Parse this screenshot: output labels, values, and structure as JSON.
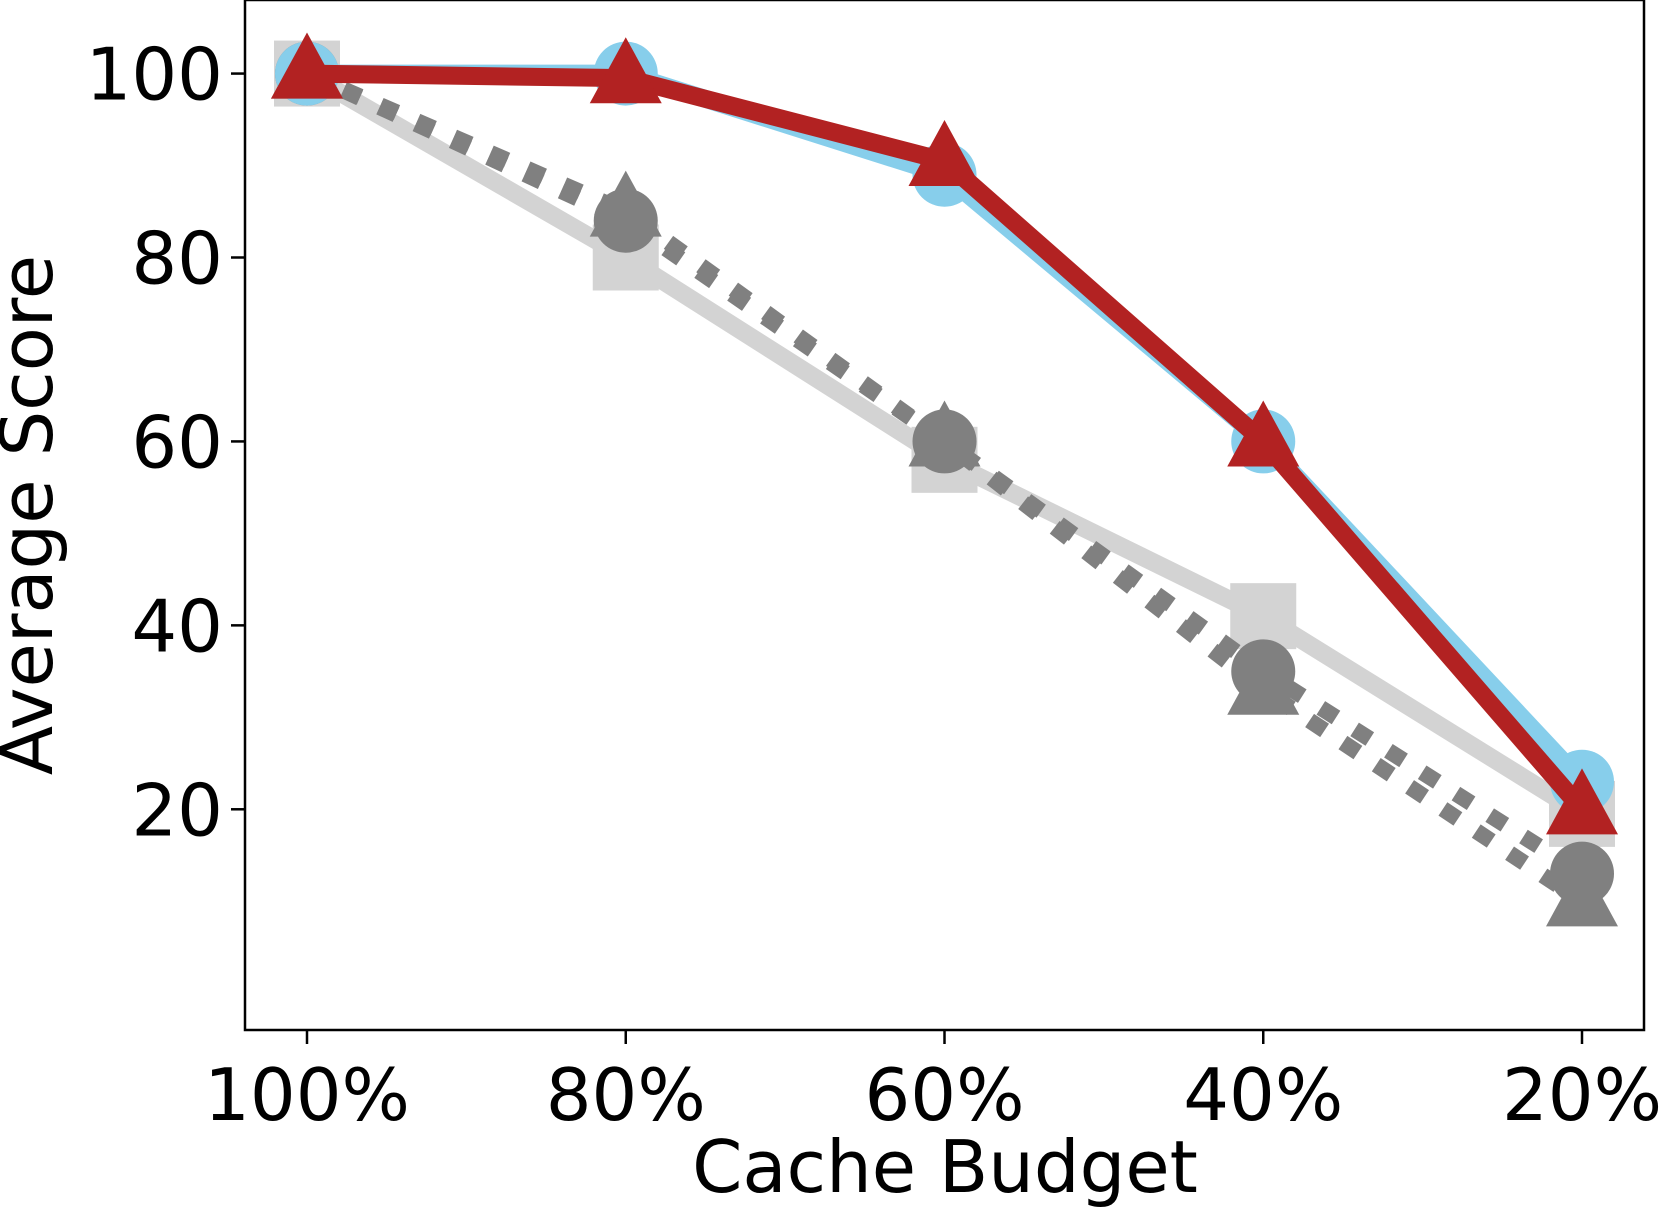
{
  "chart_data": {
    "type": "line",
    "title": "",
    "xlabel": "Cache Budget",
    "ylabel": "Average Score",
    "categories": [
      "100%",
      "80%",
      "60%",
      "40%",
      "20%"
    ],
    "yticks": [
      "20",
      "40",
      "60",
      "80",
      "100"
    ],
    "ylim": [
      -4,
      108
    ],
    "grid": false,
    "series": [
      {
        "values": [
          100,
          80,
          58,
          41,
          19.5
        ],
        "color": "#d3d3d3",
        "style": "solid",
        "marker": "square"
      },
      {
        "values": [
          100,
          84,
          60,
          35,
          13
        ],
        "color": "#808080",
        "style": "dotted",
        "marker": "circle"
      },
      {
        "values": [
          100,
          85,
          60,
          33,
          10
        ],
        "color": "#808080",
        "style": "dotted",
        "marker": "triangle"
      },
      {
        "values": [
          100,
          100,
          89,
          60,
          23
        ],
        "color": "#87ceeb",
        "style": "solid",
        "marker": "circle"
      },
      {
        "values": [
          100,
          99.5,
          90.5,
          60,
          20
        ],
        "color": "#b22222",
        "style": "solid",
        "marker": "triangle"
      }
    ]
  }
}
